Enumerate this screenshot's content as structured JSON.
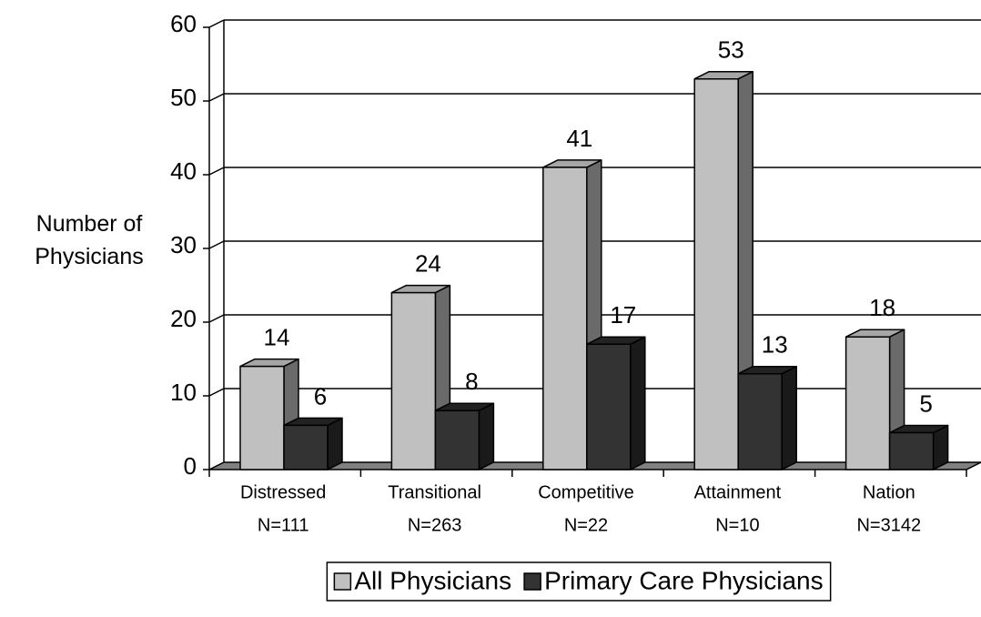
{
  "chart_data": {
    "type": "bar3d",
    "y_label": "Number of Physicians",
    "categories": [
      [
        "Distressed",
        "N=111"
      ],
      [
        "Transitional",
        "N=263"
      ],
      [
        "Competitive",
        "N=22"
      ],
      [
        "Attainment",
        "N=10"
      ],
      [
        "Nation",
        "N=3142"
      ]
    ],
    "series": [
      {
        "name": "All Physicians",
        "color": "#c0c0c0",
        "values": [
          14,
          24,
          41,
          53,
          18
        ]
      },
      {
        "name": "Primary Care Physicians",
        "color": "#333333",
        "values": [
          6,
          8,
          17,
          13,
          5
        ]
      }
    ],
    "ylim": [
      0,
      60
    ],
    "yticks": [
      0,
      10,
      20,
      30,
      40,
      50,
      60
    ],
    "grid": true,
    "legend": "bottom"
  }
}
